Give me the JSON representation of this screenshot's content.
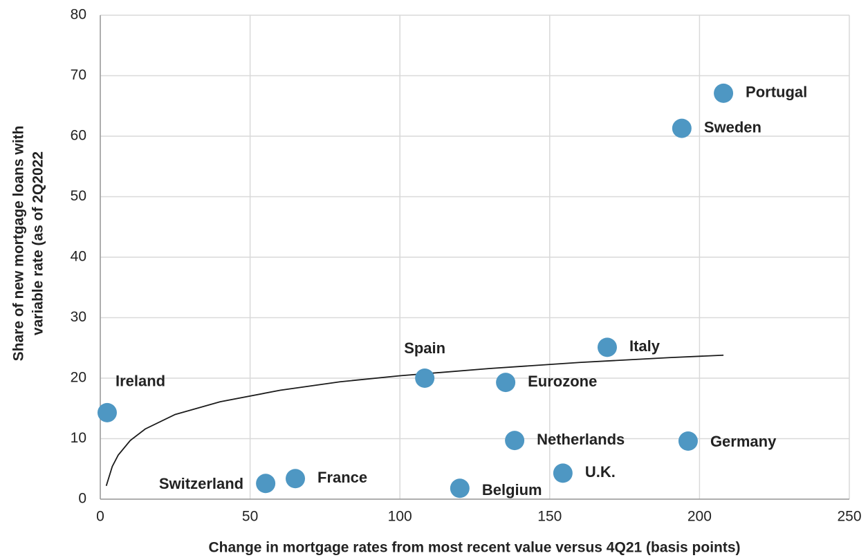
{
  "chart_data": {
    "type": "scatter",
    "xlabel": "Change in mortgage rates from most recent value versus 4Q21 (basis points)",
    "ylabel": [
      "Share of new mortgage loans with",
      "variable rate (as of 2Q2022"
    ],
    "color": "#4e97c3",
    "grid": true,
    "xlim": [
      0,
      250
    ],
    "ylim": [
      0,
      80
    ],
    "xticks": [
      0,
      50,
      100,
      150,
      200,
      250
    ],
    "yticks": [
      0,
      10,
      20,
      30,
      40,
      50,
      60,
      70,
      80
    ],
    "labels": [
      "Ireland",
      "Switzerland",
      "France",
      "Belgium",
      "Spain",
      "Eurozone",
      "Netherlands",
      "U.K.",
      "Italy",
      "Germany",
      "Sweden",
      "Portugal"
    ],
    "x": [
      2.3,
      55.2,
      65.1,
      120,
      108.3,
      135.3,
      138.3,
      154.4,
      169.2,
      196.2,
      194.1,
      208
    ],
    "values": [
      14.3,
      2.6,
      3.4,
      1.8,
      20,
      19.3,
      9.7,
      4.3,
      25.1,
      9.6,
      61.3,
      67.1
    ],
    "trendline": {
      "color": "#1a1a1a",
      "x": [
        2,
        4,
        6,
        10,
        15,
        25,
        40,
        60,
        80,
        100,
        130,
        160,
        190,
        208
      ],
      "values": [
        2.2,
        5.4,
        7.3,
        9.7,
        11.6,
        14.0,
        16.1,
        18.0,
        19.4,
        20.4,
        21.6,
        22.6,
        23.4,
        23.8
      ]
    }
  }
}
